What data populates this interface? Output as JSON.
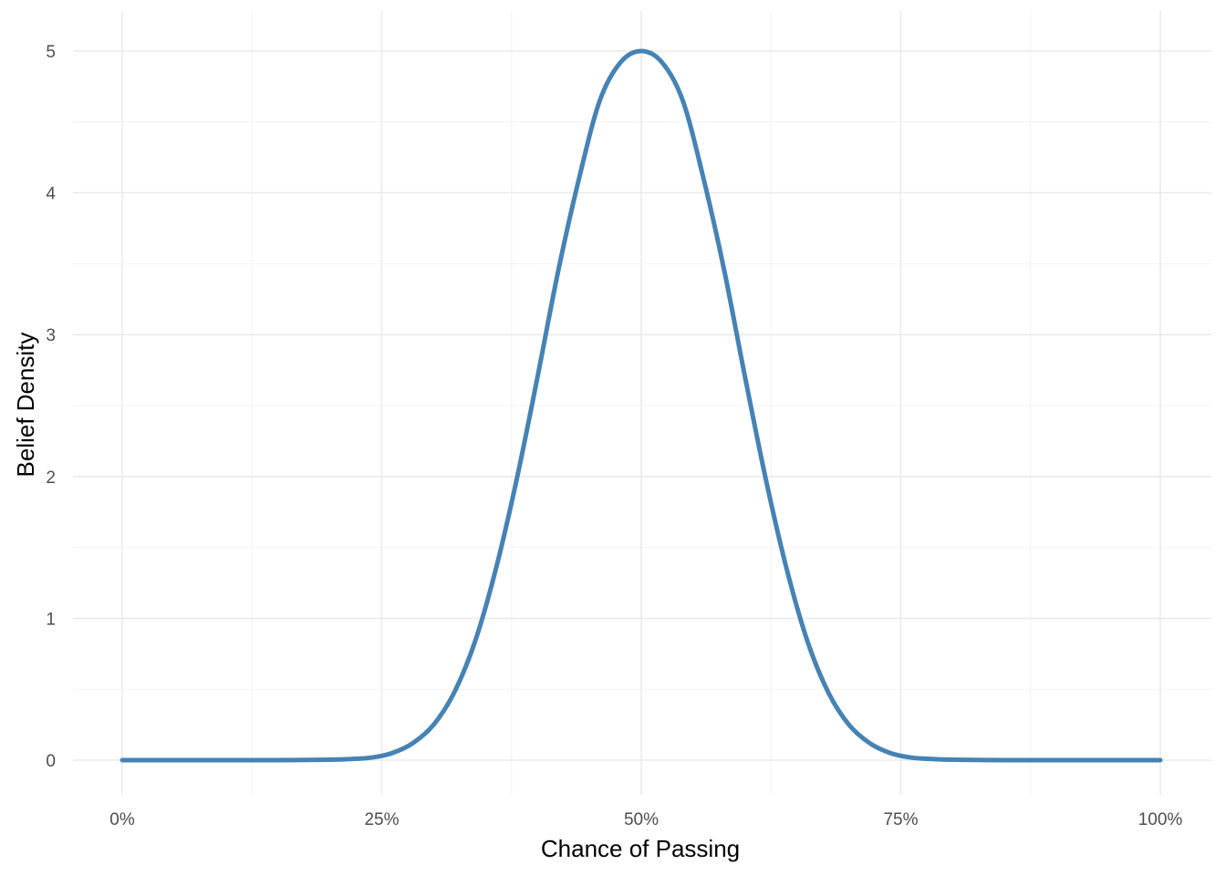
{
  "chart_data": {
    "type": "line",
    "title": "",
    "xlabel": "Chance of Passing",
    "ylabel": "Belief Density",
    "xlim": [
      0,
      1
    ],
    "ylim": [
      0,
      5
    ],
    "x_ticks": [
      0,
      0.25,
      0.5,
      0.75,
      1
    ],
    "x_tick_labels": [
      "0%",
      "25%",
      "50%",
      "75%",
      "100%"
    ],
    "y_ticks": [
      0,
      1,
      2,
      3,
      4,
      5
    ],
    "y_tick_labels": [
      "0",
      "1",
      "2",
      "3",
      "4",
      "5"
    ],
    "grid": true,
    "legend": "none",
    "series": [
      {
        "color": "#4682b4",
        "x": [
          0.0,
          0.05,
          0.1,
          0.15,
          0.2,
          0.22,
          0.24,
          0.26,
          0.28,
          0.3,
          0.32,
          0.34,
          0.36,
          0.38,
          0.4,
          0.42,
          0.44,
          0.46,
          0.48,
          0.5,
          0.52,
          0.54,
          0.56,
          0.58,
          0.6,
          0.62,
          0.64,
          0.66,
          0.68,
          0.7,
          0.72,
          0.74,
          0.76,
          0.78,
          0.8,
          0.85,
          0.9,
          0.95,
          1.0
        ],
        "y": [
          0.0,
          0.0,
          0.0,
          0.0,
          0.003,
          0.008,
          0.018,
          0.05,
          0.12,
          0.25,
          0.48,
          0.84,
          1.35,
          1.98,
          2.7,
          3.45,
          4.1,
          4.65,
          4.92,
          5.0,
          4.92,
          4.65,
          4.1,
          3.45,
          2.7,
          1.98,
          1.35,
          0.84,
          0.48,
          0.25,
          0.12,
          0.05,
          0.018,
          0.008,
          0.003,
          0.0,
          0.0,
          0.0,
          0.0
        ]
      }
    ]
  }
}
